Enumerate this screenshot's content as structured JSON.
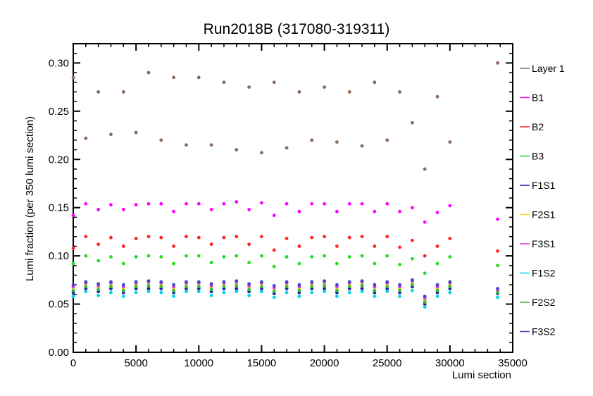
{
  "chart_data": {
    "type": "scatter",
    "title": "Run2018B (317080-319311)",
    "xlabel": "Lumi section",
    "ylabel": "Lumi fraction (per 350 lumi section)",
    "xlim": [
      0,
      35000
    ],
    "ylim": [
      0,
      0.32
    ],
    "x_ticks": [
      "0",
      "5000",
      "10000",
      "15000",
      "20000",
      "25000",
      "30000",
      "35000"
    ],
    "y_ticks": [
      "0.00",
      "0.05",
      "0.10",
      "0.15",
      "0.20",
      "0.25",
      "0.30"
    ],
    "grid": false,
    "legend_position": "right",
    "x": [
      0,
      1000,
      2000,
      3000,
      4000,
      5000,
      6000,
      7000,
      8000,
      9000,
      10000,
      11000,
      12000,
      13000,
      14000,
      15000,
      16000,
      17000,
      18000,
      19000,
      20000,
      21000,
      22000,
      23000,
      24000,
      25000,
      26000,
      27000,
      28000,
      29000,
      30000,
      33800
    ],
    "series": [
      {
        "name": "Layer 1",
        "color": "#8b6a55",
        "values": [
          0.285,
          0.222,
          0.27,
          0.226,
          0.27,
          0.228,
          0.29,
          0.22,
          0.285,
          0.215,
          0.285,
          0.215,
          0.28,
          0.21,
          0.275,
          0.207,
          0.28,
          0.212,
          0.27,
          0.22,
          0.275,
          0.218,
          0.27,
          0.214,
          0.28,
          0.22,
          0.27,
          0.238,
          0.19,
          0.265,
          0.218,
          0.3
        ]
      },
      {
        "name": "B1",
        "color": "#ff00ff",
        "values": [
          0.142,
          0.154,
          0.148,
          0.153,
          0.148,
          0.153,
          0.154,
          0.154,
          0.146,
          0.154,
          0.154,
          0.148,
          0.154,
          0.156,
          0.148,
          0.155,
          0.142,
          0.154,
          0.146,
          0.154,
          0.154,
          0.146,
          0.154,
          0.154,
          0.146,
          0.154,
          0.146,
          0.15,
          0.135,
          0.145,
          0.152,
          0.138
        ]
      },
      {
        "name": "B2",
        "color": "#ff2222",
        "values": [
          0.108,
          0.12,
          0.112,
          0.119,
          0.11,
          0.118,
          0.12,
          0.119,
          0.11,
          0.12,
          0.119,
          0.112,
          0.119,
          0.12,
          0.112,
          0.12,
          0.106,
          0.118,
          0.11,
          0.119,
          0.12,
          0.11,
          0.119,
          0.12,
          0.11,
          0.12,
          0.109,
          0.116,
          0.1,
          0.11,
          0.118,
          0.105
        ]
      },
      {
        "name": "B3",
        "color": "#22dd22",
        "values": [
          0.092,
          0.1,
          0.095,
          0.099,
          0.092,
          0.099,
          0.1,
          0.099,
          0.092,
          0.1,
          0.1,
          0.093,
          0.099,
          0.1,
          0.093,
          0.1,
          0.089,
          0.099,
          0.092,
          0.099,
          0.1,
          0.092,
          0.099,
          0.1,
          0.092,
          0.1,
          0.091,
          0.097,
          0.082,
          0.092,
          0.099,
          0.09
        ]
      },
      {
        "name": "F1S1",
        "color": "#1a1aaa",
        "values": [
          0.062,
          0.066,
          0.063,
          0.066,
          0.062,
          0.066,
          0.066,
          0.066,
          0.062,
          0.066,
          0.066,
          0.063,
          0.066,
          0.066,
          0.063,
          0.066,
          0.061,
          0.066,
          0.062,
          0.066,
          0.066,
          0.062,
          0.066,
          0.066,
          0.062,
          0.066,
          0.062,
          0.068,
          0.05,
          0.062,
          0.066,
          0.061
        ]
      },
      {
        "name": "F2S1",
        "color": "#e8d820",
        "values": [
          0.066,
          0.071,
          0.067,
          0.07,
          0.066,
          0.07,
          0.071,
          0.07,
          0.066,
          0.071,
          0.071,
          0.067,
          0.07,
          0.071,
          0.067,
          0.071,
          0.065,
          0.07,
          0.066,
          0.07,
          0.071,
          0.066,
          0.07,
          0.071,
          0.066,
          0.071,
          0.066,
          0.072,
          0.054,
          0.066,
          0.07,
          0.063
        ]
      },
      {
        "name": "F3S1",
        "color": "#dd33dd",
        "values": [
          0.068,
          0.072,
          0.069,
          0.072,
          0.068,
          0.072,
          0.073,
          0.072,
          0.068,
          0.072,
          0.072,
          0.069,
          0.072,
          0.073,
          0.069,
          0.072,
          0.067,
          0.072,
          0.068,
          0.072,
          0.073,
          0.068,
          0.072,
          0.073,
          0.068,
          0.072,
          0.068,
          0.074,
          0.056,
          0.068,
          0.072,
          0.064
        ]
      },
      {
        "name": "F1S2",
        "color": "#00d8e8",
        "values": [
          0.058,
          0.063,
          0.059,
          0.062,
          0.058,
          0.062,
          0.063,
          0.062,
          0.058,
          0.063,
          0.063,
          0.059,
          0.062,
          0.063,
          0.059,
          0.063,
          0.057,
          0.062,
          0.058,
          0.062,
          0.063,
          0.058,
          0.062,
          0.063,
          0.058,
          0.063,
          0.058,
          0.064,
          0.047,
          0.058,
          0.062,
          0.057
        ]
      },
      {
        "name": "F2S2",
        "color": "#33bb33",
        "values": [
          0.064,
          0.068,
          0.065,
          0.068,
          0.064,
          0.068,
          0.069,
          0.068,
          0.064,
          0.068,
          0.068,
          0.065,
          0.068,
          0.069,
          0.065,
          0.068,
          0.063,
          0.068,
          0.064,
          0.068,
          0.069,
          0.064,
          0.068,
          0.069,
          0.064,
          0.068,
          0.064,
          0.07,
          0.052,
          0.064,
          0.068,
          0.062
        ]
      },
      {
        "name": "F3S2",
        "color": "#4444cc",
        "values": [
          0.07,
          0.073,
          0.071,
          0.073,
          0.07,
          0.073,
          0.074,
          0.073,
          0.07,
          0.073,
          0.073,
          0.071,
          0.073,
          0.074,
          0.071,
          0.073,
          0.069,
          0.073,
          0.07,
          0.073,
          0.074,
          0.07,
          0.073,
          0.074,
          0.07,
          0.073,
          0.07,
          0.075,
          0.058,
          0.07,
          0.073,
          0.066
        ]
      }
    ]
  }
}
